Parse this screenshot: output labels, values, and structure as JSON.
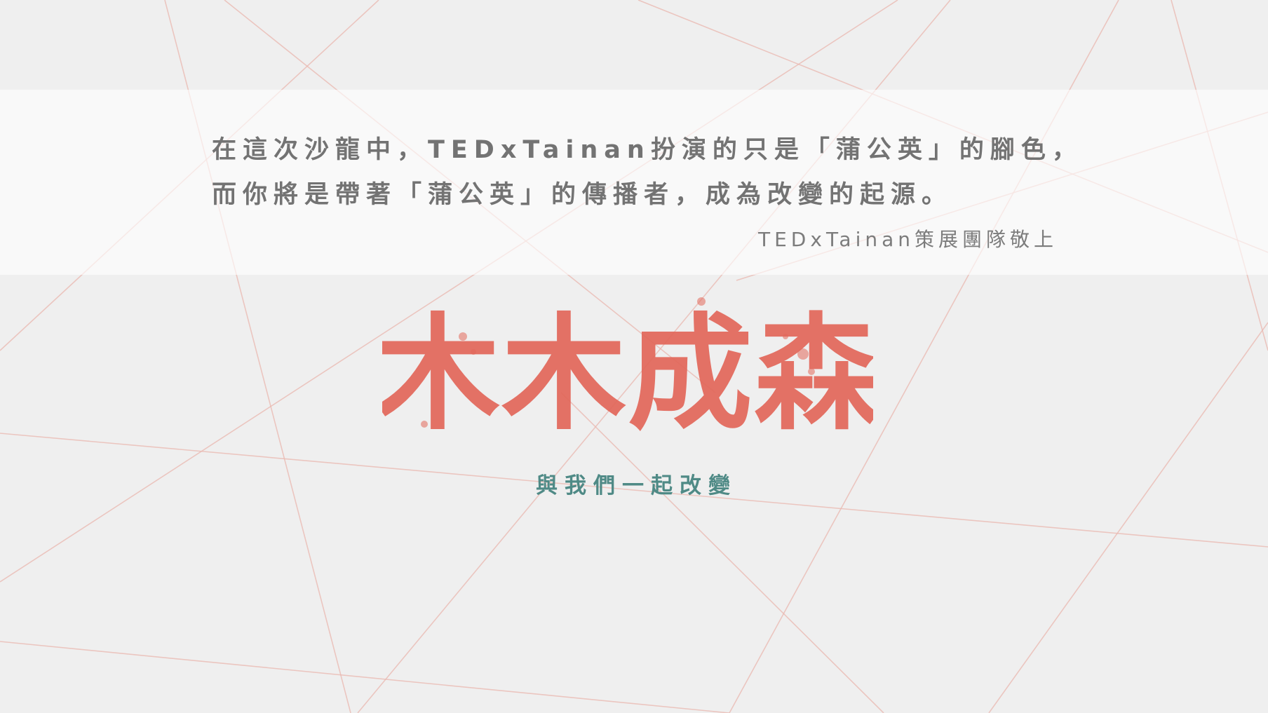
{
  "quote": {
    "line1": "在這次沙龍中，TEDxTainan扮演的只是「蒲公英」的腳色，",
    "line2": "而你將是帶著「蒲公英」的傳播者，成為改變的起源。",
    "signature": "TEDxTainan策展團隊敬上"
  },
  "logo": {
    "text": "木木成森"
  },
  "tagline": "與我們一起改變",
  "colors": {
    "background": "#efefef",
    "band": "#f8f8f8",
    "lines": "#eab8b0",
    "quote_text": "#737373",
    "logo": "#e2675a",
    "tagline": "#4f8a86"
  }
}
